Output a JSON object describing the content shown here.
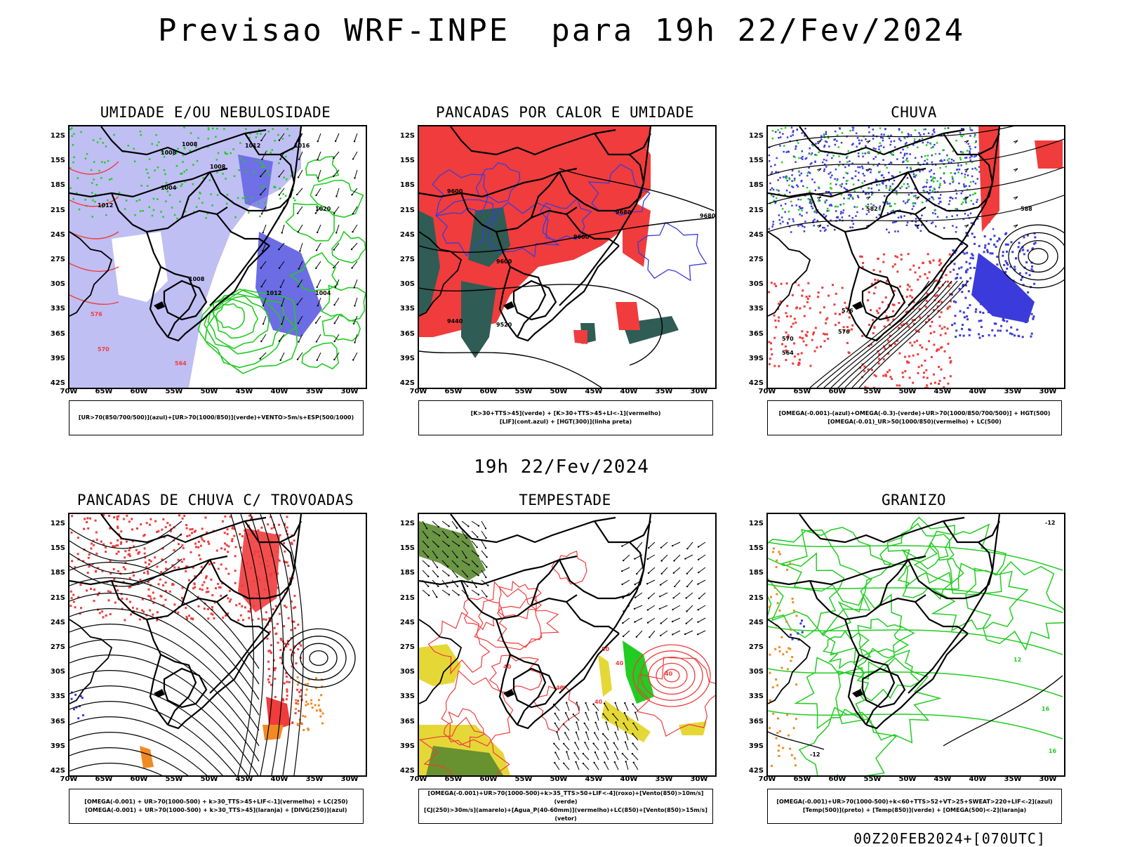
{
  "title": "Previsao WRF-INPE  para 19h 22/Fev/2024",
  "mid_title": "19h 22/Fev/2024",
  "footer": "00Z20FEB2024+[070UTC]",
  "lat_ticks": [
    "12S",
    "15S",
    "18S",
    "21S",
    "24S",
    "27S",
    "30S",
    "33S",
    "36S",
    "39S",
    "42S"
  ],
  "lon_ticks": [
    "70W",
    "65W",
    "60W",
    "55W",
    "50W",
    "45W",
    "40W",
    "35W",
    "30W"
  ],
  "panels": [
    {
      "id": "umidade",
      "title": "UMIDADE E/OU NEBULOSIDADE",
      "legend": [
        "[UR>70(850/700/500)](azul)+[UR>70(1000/850)](verde)+VENTO>5m/s+ESP(500/1000)"
      ],
      "labels": [
        "1008",
        "1008",
        "1008",
        "1012",
        "1004",
        "1012",
        "1016",
        "1020",
        "1008",
        "1012",
        "1004",
        "576",
        "570",
        "564"
      ]
    },
    {
      "id": "pancadas-calor",
      "title": "PANCADAS POR CALOR E UMIDADE",
      "legend": [
        "[K>30+TTS>45](verde) + [K>30+TTS>45+LI<-1](vermelho)",
        "[LIF](cont.azul) + [HGT(300)](linha preta)"
      ],
      "labels": [
        "9600",
        "9600",
        "9680",
        "9600",
        "9520",
        "9440",
        "9680"
      ]
    },
    {
      "id": "chuva",
      "title": "CHUVA",
      "legend": [
        "[OMEGA(-0.001)-(azul)+OMEGA(-0.3)-(verde)+UR>70(1000/850/700/500)] + HGT(500)",
        "[OMEGA(-0.01)_UR>50(1000/850)(vermelho) + LC(500)"
      ],
      "labels": [
        "582",
        "588",
        "576",
        "576",
        "570",
        "564"
      ]
    },
    {
      "id": "trovoadas",
      "title": "PANCADAS DE CHUVA C/ TROVOADAS",
      "legend": [
        "[OMEGA(-0.001) + UR>70(1000-500) + k>30_TTS>45+LIF<-1](vermelho) + LC(250)",
        "[OMEGA(-0.001) + UR>70(1000-500) + k>30_TTS>45](laranja) + [DIVG(250)](azul)"
      ],
      "labels": []
    },
    {
      "id": "tempestade",
      "title": "TEMPESTADE",
      "legend": [
        "[OMEGA(-0.001)+UR>70(1000-500)+k>35_TTS>50+LIF<-4](roxo)+[Vento(850)>10m/s](verde)",
        "[CJ(250)>30m/s](amarelo)+[Agua_P(40-60mm)](vermelho)+LC(850)+[Vento(850)>15m/s](vetor)"
      ],
      "labels": [
        "40",
        "40",
        "40",
        "50",
        "40",
        "40"
      ]
    },
    {
      "id": "granizo",
      "title": "GRANIZO",
      "legend": [
        "[OMEGA(-0.001)+UR>70(1000-500)+k<60+TTS>52+VT>25+SWEAT>220+LIF<-2](azul)",
        "[Temp(500)](preto) + [Temp(850)](verde) + [OMEGA(500)<-2](laranja)"
      ],
      "labels": [
        "-12",
        "-12",
        "12",
        "16",
        "16"
      ]
    }
  ],
  "colors": {
    "blue": "#3b3bdc",
    "light_blue": "#a9a9f0",
    "green": "#22cc22",
    "red": "#f03c3c",
    "dark_teal": "#2f5c55",
    "yellow": "#e5d836",
    "orange": "#f08a24"
  }
}
